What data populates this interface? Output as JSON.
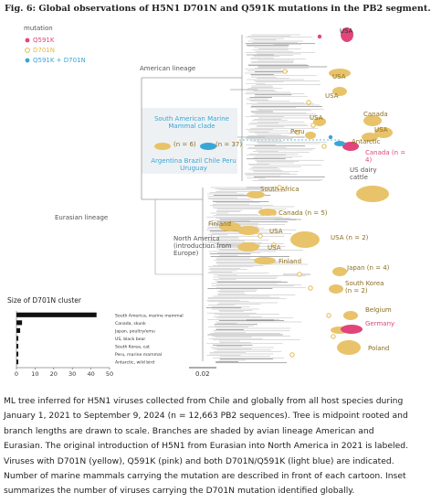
{
  "figure": {
    "title": "Fig. 6: Global observations of H5N1 D701N and Q591K mutations in the PB2 segment.",
    "legend": {
      "title": "mutation",
      "items": [
        {
          "label": "Q591K",
          "color": "#e0457b"
        },
        {
          "label": "D701N",
          "color": "#e3b64c"
        },
        {
          "label": "Q591K + D701N",
          "color": "#3aa6d4"
        }
      ]
    },
    "labels": [
      "American lineage",
      "Eurasian lineage",
      "USA",
      "USA",
      "USA",
      "Canada",
      "USA",
      "Peru",
      "USA",
      "Antarctic",
      "Canada (n = 4)",
      "US dairy cattle",
      "South Africa",
      "Canada (n = 5)",
      "Finland",
      "North America (introduction from Europe)",
      "USA",
      "USA",
      "USA (n = 2)",
      "Finland",
      "Japan (n = 4)",
      "South Korea (n = 2)",
      "Belgium",
      "Germany",
      "Poland",
      "South American Marine Mammal clade",
      "(n = 6)",
      "(n = 37)",
      "Argentina Brazil Chile Peru Uruguay"
    ],
    "scale_bar": "0.02"
  },
  "chart_data": {
    "type": "bar",
    "orientation": "horizontal",
    "title": "Size of D701N cluster",
    "categories": [
      "South America, marine mammal",
      "Canada, skunk",
      "Japan, poultry/emu",
      "US, black bear",
      "South Korea, cat",
      "Peru, marine mammal",
      "Antarctic, wild bird"
    ],
    "values": [
      43,
      3,
      2,
      1,
      1,
      1,
      1
    ],
    "color": "#111111",
    "xlim": [
      0,
      50
    ],
    "xticks": [
      0,
      10,
      20,
      30,
      40,
      50
    ]
  },
  "caption": "ML tree inferred for H5N1 viruses collected from Chile and globally from all host species during January 1, 2021 to September 9, 2024 (n = 12,663 PB2 sequences). Tree is midpoint rooted and branch lengths are drawn to scale. Branches are shaded by avian lineage American and Eurasian. The original introduction of H5N1 from Eurasian into North America in 2021 is labeled. Viruses with D701N (yellow), Q591K (pink) and both D701N/Q591K (light blue) are indicated. Number of marine mammals carrying the mutation are described in front of each cartoon. Inset summarizes the number of viruses carrying the D701N mutation identified globally."
}
